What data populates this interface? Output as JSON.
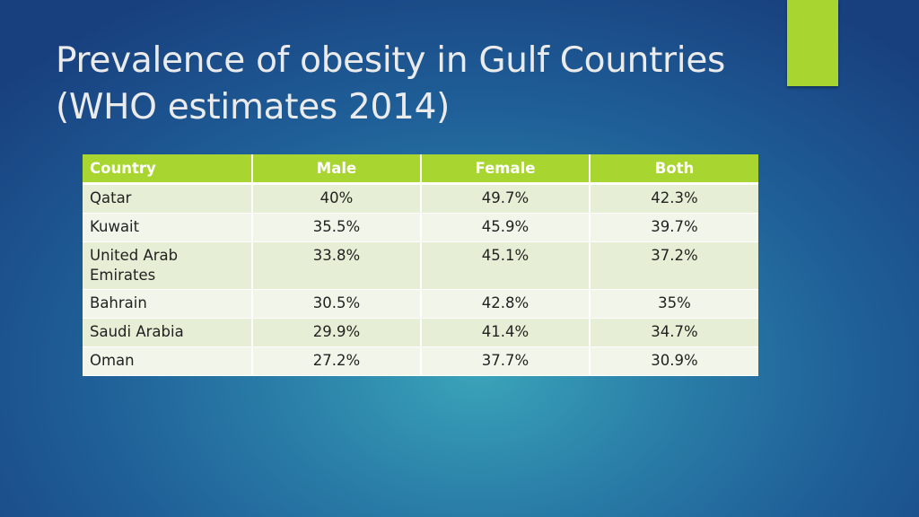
{
  "slide": {
    "title_line1": "Prevalence of obesity in Gulf Countries",
    "title_line2": "(WHO estimates 2014)",
    "accent_color": "#a8d530"
  },
  "table": {
    "headers": [
      "Country",
      "Male",
      "Female",
      "Both"
    ],
    "rows": [
      [
        "Qatar",
        "40%",
        "49.7%",
        "42.3%"
      ],
      [
        "Kuwait",
        "35.5%",
        "45.9%",
        "39.7%"
      ],
      [
        "United Arab Emirates",
        "33.8%",
        "45.1%",
        "37.2%"
      ],
      [
        "Bahrain",
        "30.5%",
        "42.8%",
        "35%"
      ],
      [
        "Saudi Arabia",
        "29.9%",
        "41.4%",
        "34.7%"
      ],
      [
        "Oman",
        "27.2%",
        "37.7%",
        "30.9%"
      ]
    ]
  }
}
